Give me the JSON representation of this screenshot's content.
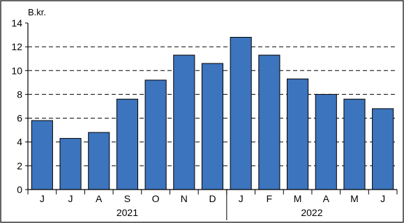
{
  "chart_data": {
    "type": "bar",
    "unit_label": "B.kr.",
    "categories": [
      "J",
      "J",
      "A",
      "S",
      "O",
      "N",
      "D",
      "J",
      "F",
      "M",
      "A",
      "M",
      "J"
    ],
    "values": [
      5.8,
      4.3,
      4.8,
      7.6,
      9.2,
      11.3,
      10.6,
      12.8,
      11.3,
      9.3,
      8.0,
      7.6,
      6.8
    ],
    "year_groups": [
      {
        "label": "2021",
        "start": 0,
        "end": 6
      },
      {
        "label": "2022",
        "start": 7,
        "end": 12
      }
    ],
    "ylim": [
      0,
      14
    ],
    "yticks": [
      0,
      2,
      4,
      6,
      8,
      10,
      12,
      14
    ],
    "gridlines": [
      2,
      4,
      6,
      8,
      10,
      12
    ],
    "bar_color": "#3c74bd",
    "grid": "dashed"
  }
}
